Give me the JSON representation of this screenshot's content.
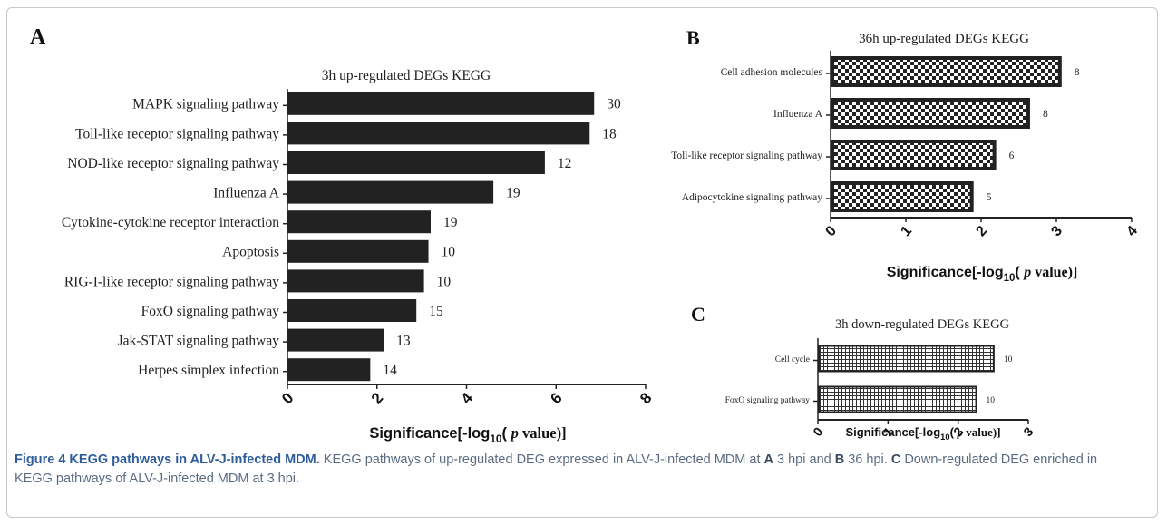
{
  "panels": [
    "A",
    "B",
    "C"
  ],
  "chart_data": [
    {
      "panel": "A",
      "type": "bar",
      "orientation": "horizontal",
      "title": "3h up-regulated DEGs KEGG",
      "xlabel_parts": {
        "pre": "Significance[-log",
        "sub": "10",
        "mid": "( ",
        "italic": "p",
        "post": " value)]"
      },
      "xlim": [
        0,
        8
      ],
      "xticks": [
        "0",
        "2",
        "4",
        "6",
        "8"
      ],
      "fill": "solid",
      "bar_color": "#222222",
      "categories": [
        "MAPK signaling pathway",
        "Toll-like receptor signaling pathway",
        "NOD-like receptor signaling pathway",
        "Influenza A",
        "Cytokine-cytokine receptor interaction",
        "Apoptosis",
        "RIG-I-like receptor signaling pathway",
        "FoxO signaling pathway",
        "Jak-STAT signaling pathway",
        "Herpes simplex infection"
      ],
      "values": [
        6.85,
        6.75,
        5.75,
        4.6,
        3.2,
        3.15,
        3.05,
        2.88,
        2.15,
        1.85
      ],
      "labels": [
        "30",
        "18",
        "12",
        "19",
        "19",
        "10",
        "10",
        "15",
        "13",
        "14"
      ]
    },
    {
      "panel": "B",
      "type": "bar",
      "orientation": "horizontal",
      "title": "36h up-regulated DEGs KEGG",
      "xlabel_parts": {
        "pre": "Significance[-log",
        "sub": "10",
        "mid": "( ",
        "italic": "p",
        "post": " value)]"
      },
      "xlim": [
        0,
        4
      ],
      "xticks": [
        "0",
        "1",
        "2",
        "3",
        "4"
      ],
      "fill": "checkerboard",
      "bar_color": "#222222",
      "categories": [
        "Cell adhesion molecules",
        "Influenza A",
        "Toll-like receptor signaling pathway",
        "Adipocytokine signaling pathway"
      ],
      "values": [
        3.07,
        2.65,
        2.2,
        1.9
      ],
      "labels": [
        "8",
        "8",
        "6",
        "5"
      ]
    },
    {
      "panel": "C",
      "type": "bar",
      "orientation": "horizontal",
      "title": "3h down-regulated DEGs KEGG",
      "xlabel_parts": {
        "pre": "Significance[-log",
        "sub": "10",
        "mid": "( ",
        "italic": "p",
        "post": " value)]"
      },
      "xlim": [
        0,
        3
      ],
      "xticks": [
        "0",
        "1",
        "2",
        "3"
      ],
      "fill": "grid",
      "bar_color": "#333333",
      "categories": [
        "Cell cycle",
        "FoxO signaling pathway"
      ],
      "values": [
        2.52,
        2.27
      ],
      "labels": [
        "10",
        "10"
      ]
    }
  ],
  "caption": {
    "title": "Figure 4  KEGG pathways in ALV-J-infected MDM.",
    "part1": " KEGG pathways of up-regulated DEG expressed in ALV-J-infected MDM at ",
    "a": "A",
    "part2": " 3 hpi and ",
    "b": "B",
    "part3": " 36 hpi. ",
    "c": "C",
    "part4": " Down-regulated DEG enriched in KEGG pathways of ALV-J-infected MDM at 3 hpi."
  }
}
